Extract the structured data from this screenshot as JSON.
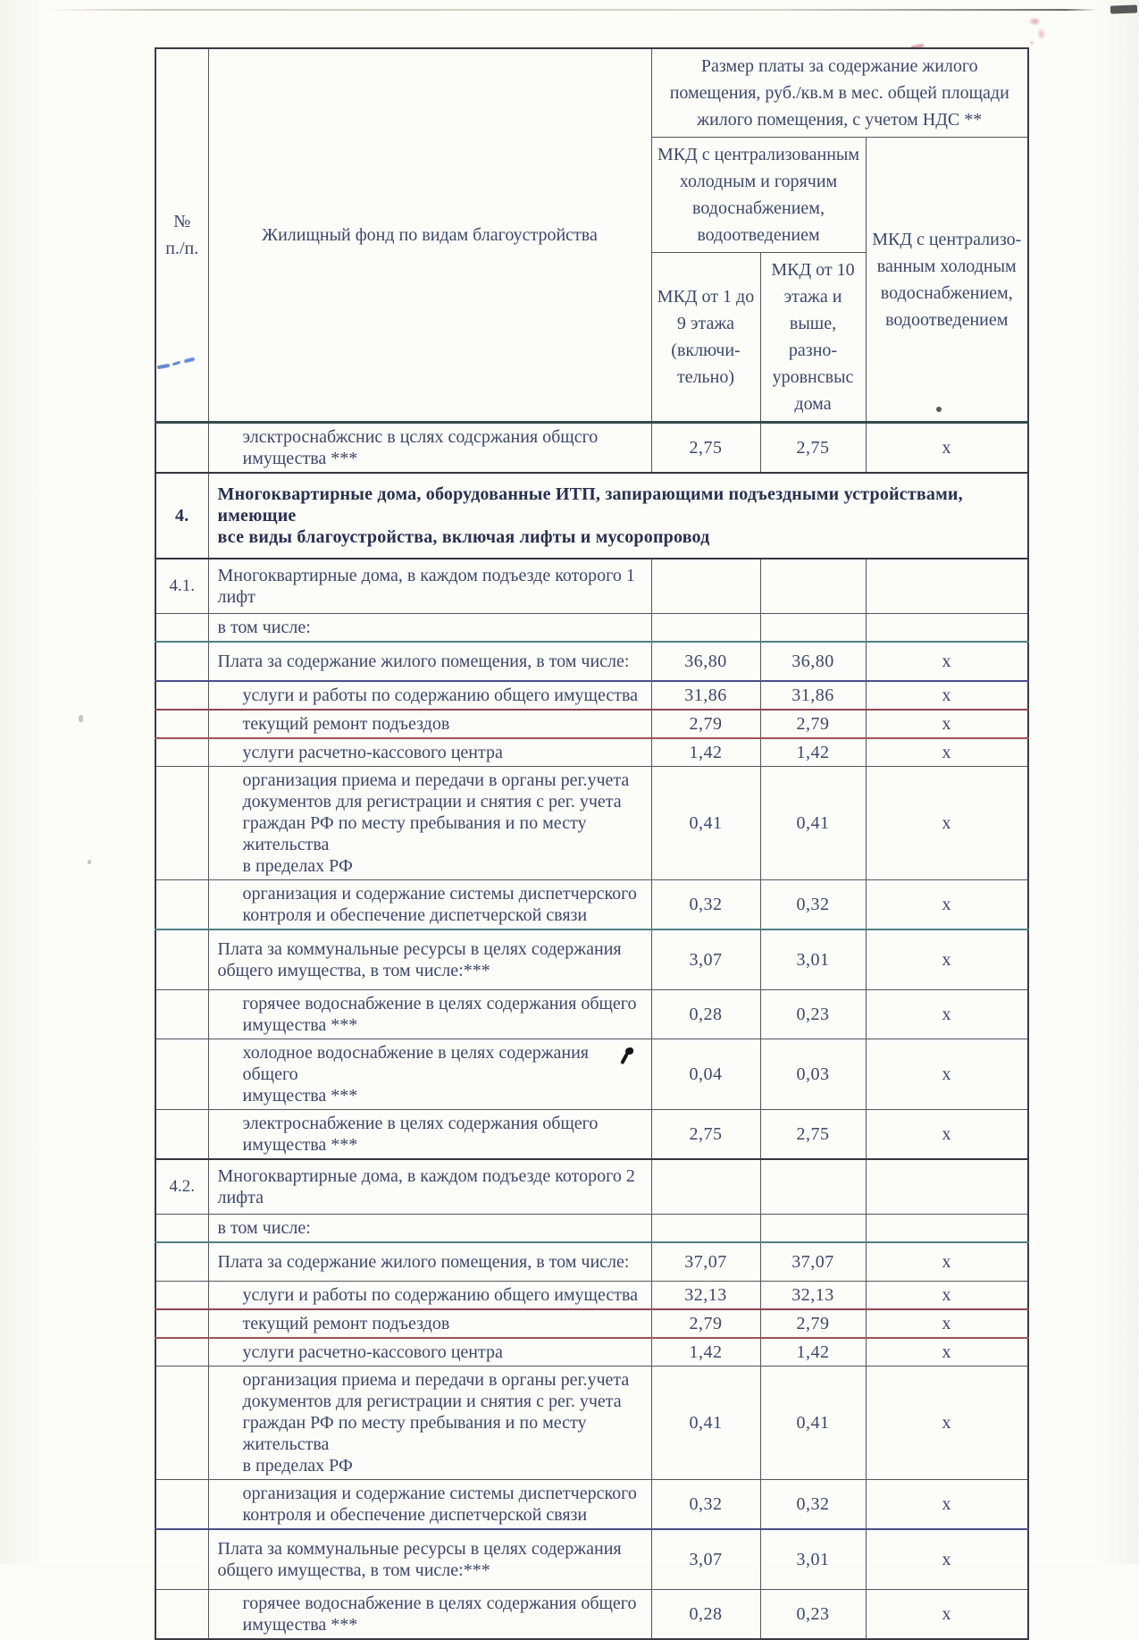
{
  "table": {
    "header": {
      "col_num": "№\nп./п.",
      "col_desc": "Жилищный фонд по видам благоустройства",
      "col_price_group": "Размер платы за содержание жилого\nпомещения, руб./кв.м в мес. общей площади\nжилого помещения, с учетом НДС **",
      "col_central_hot_cold": "МКД с централизованным\nхолодным и горячим\nводоснабжением,\nводоотведением",
      "col_1_9": "МКД  от 1 до\n9 этажа\n(включи-\nтельно)",
      "col_10_plus": "МКД от 10\nэтажа и\nвыше, разно-\nуровнсвыс\nдома",
      "col_cold_only": "МКД с централизо-\nванным холодным\nводоснабжением,\nводоотведением"
    },
    "rows": [
      {
        "num": "",
        "level": "sub",
        "label": "элсктроснабжснис  в цслях содсржания общсго\nимущества ***",
        "v1": "2,75",
        "v2": "2,75",
        "v3": "х"
      },
      {
        "num": "4.",
        "level": "section",
        "label": "Многоквартирные дома, оборудованные ИТП,  запирающими подъездными устройствами, имеющие\nвсе виды благоустройства, включая  лифты и  мусоропровод",
        "v1": "",
        "v2": "",
        "v3": ""
      },
      {
        "num": "4.1.",
        "level": "item",
        "label": "Многоквартирные дома, в каждом подъезде которого 1\nлифт",
        "v1": "",
        "v2": "",
        "v3": ""
      },
      {
        "num": "",
        "level": "note",
        "label": "в том числе:",
        "v1": "",
        "v2": "",
        "v3": ""
      },
      {
        "num": "",
        "level": "group",
        "label": "Плата за содержание жилого помещения, в том числе:",
        "v1": "36,80",
        "v2": "36,80",
        "v3": "х"
      },
      {
        "num": "",
        "level": "sub",
        "label": "услуги и работы по содержанию общего имущества",
        "v1": "31,86",
        "v2": "31,86",
        "v3": "х"
      },
      {
        "num": "",
        "level": "sub",
        "label": "текущий ремонт подъездов",
        "v1": "2,79",
        "v2": "2,79",
        "v3": "х"
      },
      {
        "num": "",
        "level": "sub",
        "label": "услуги расчетно-кассового центра",
        "v1": "1,42",
        "v2": "1,42",
        "v3": "х"
      },
      {
        "num": "",
        "level": "sub",
        "label": "организация приема и передачи в органы  рег.учета\nдокументов для регистрации и снятия с рег. учета\nграждан РФ по месту пребывания и по месту жительства\nв пределах РФ",
        "v1": "0,41",
        "v2": "0,41",
        "v3": "х"
      },
      {
        "num": "",
        "level": "sub",
        "label": "организация и содержание системы диспетчерского\nконтроля и обеспечение диспетчерской связи",
        "v1": "0,32",
        "v2": "0,32",
        "v3": "х"
      },
      {
        "num": "",
        "level": "group",
        "label": "Плата за коммунальные ресурсы в целях содержания\nобщего имущества, в том числе:***",
        "v1": "3,07",
        "v2": "3,01",
        "v3": "х"
      },
      {
        "num": "",
        "level": "sub",
        "label": "горячее водоснабжение  в целях содержания общего\nимущества ***",
        "v1": "0,28",
        "v2": "0,23",
        "v3": "х"
      },
      {
        "num": "",
        "level": "sub",
        "label": "холодное водоснабжение  в целях содержания общего\nимущества ***",
        "v1": "0,04",
        "v2": "0,03",
        "v3": "х"
      },
      {
        "num": "",
        "level": "sub",
        "label": "электроснабжение  в целях содержания общего\nимущества ***",
        "v1": "2,75",
        "v2": "2,75",
        "v3": "х"
      },
      {
        "num": "4.2.",
        "level": "item",
        "label": "Многоквартирные дома, в каждом подъезде которого 2\nлифта",
        "v1": "",
        "v2": "",
        "v3": ""
      },
      {
        "num": "",
        "level": "note",
        "label": "в том числе:",
        "v1": "",
        "v2": "",
        "v3": ""
      },
      {
        "num": "",
        "level": "group",
        "label": "Плата за содержание жилого помещения, в том числе:",
        "v1": "37,07",
        "v2": "37,07",
        "v3": "х"
      },
      {
        "num": "",
        "level": "sub",
        "label": "услуги и работы по содержанию общего имущества",
        "v1": "32,13",
        "v2": "32,13",
        "v3": "х"
      },
      {
        "num": "",
        "level": "sub",
        "label": "текущий ремонт подъездов",
        "v1": "2,79",
        "v2": "2,79",
        "v3": "х"
      },
      {
        "num": "",
        "level": "sub",
        "label": "услуги расчетно-кассового центра",
        "v1": "1,42",
        "v2": "1,42",
        "v3": "х"
      },
      {
        "num": "",
        "level": "sub",
        "label": "организация приема и передачи в органы  рег.учета\nдокументов для регистрации и снятия с рег. учета\nграждан РФ по месту пребывания и по месту жительства\nв пределах РФ",
        "v1": "0,41",
        "v2": "0,41",
        "v3": "х"
      },
      {
        "num": "",
        "level": "sub",
        "label": "организация и содержание системы диспетчерского\nконтроля и обеспечение диспетчерской связи",
        "v1": "0,32",
        "v2": "0,32",
        "v3": "х"
      },
      {
        "num": "",
        "level": "group",
        "label": "Плата за коммунальные ресурсы в целях содержания\nобщего имущества, в том числе:***",
        "v1": "3,07",
        "v2": "3,01",
        "v3": "х"
      },
      {
        "num": "",
        "level": "sub",
        "label": "горячее водоснабжение  в целях содержания общего\nимущества ***",
        "v1": "0,28",
        "v2": "0,23",
        "v3": "х"
      }
    ]
  }
}
